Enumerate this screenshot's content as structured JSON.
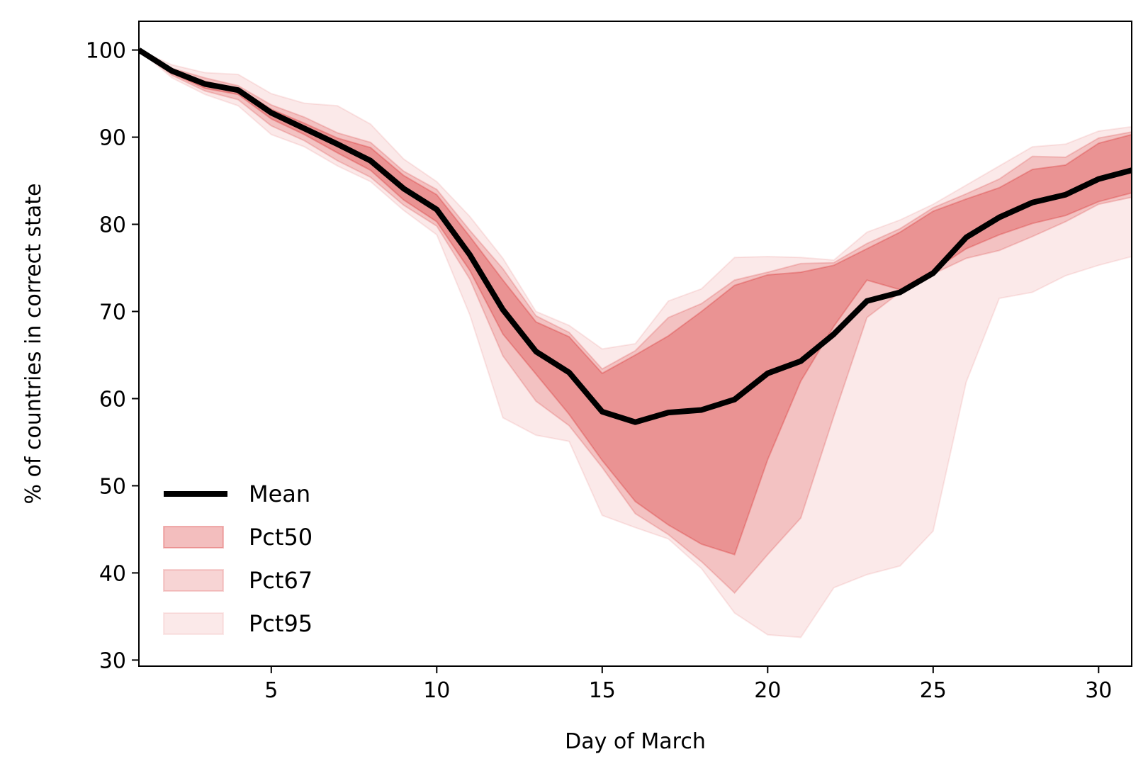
{
  "chart_data": {
    "type": "area",
    "title": "",
    "xlabel": "Day of March",
    "ylabel": "% of countries in correct state",
    "xlim": [
      1,
      31
    ],
    "ylim": [
      29.3,
      103.3
    ],
    "xticks": [
      5,
      10,
      15,
      20,
      25,
      30
    ],
    "yticks": [
      30,
      40,
      50,
      60,
      70,
      80,
      90,
      100
    ],
    "grid": false,
    "legend_position": "lower-left",
    "colors": {
      "mean": "#000000",
      "band": "#d62728",
      "pct50_opacity": 0.3,
      "pct67_opacity": 0.2,
      "pct95_opacity": 0.1
    },
    "x": [
      1,
      2,
      3,
      4,
      5,
      6,
      7,
      8,
      9,
      10,
      11,
      12,
      13,
      14,
      15,
      16,
      17,
      18,
      19,
      20,
      21,
      22,
      23,
      24,
      25,
      26,
      27,
      28,
      29,
      30,
      31
    ],
    "series": [
      {
        "name": "Mean",
        "kind": "line",
        "values": [
          100,
          97.6,
          96.1,
          95.4,
          92.8,
          91,
          89.2,
          87.3,
          84.1,
          81.7,
          76.5,
          70.2,
          65.4,
          63,
          58.5,
          57.3,
          58.4,
          58.7,
          59.9,
          62.9,
          64.3,
          67.4,
          71.2,
          72.2,
          74.4,
          78.5,
          80.8,
          82.5,
          83.4,
          85.2,
          86.2
        ]
      },
      {
        "name": "Pct50",
        "kind": "band",
        "upper": [
          100,
          97.7,
          96.4,
          95.6,
          93.2,
          91.6,
          89.9,
          88.8,
          85.6,
          83.4,
          78.6,
          73.6,
          68.8,
          67.1,
          62.9,
          65,
          67.2,
          70,
          73,
          74.2,
          74.5,
          75.3,
          77.2,
          79.1,
          81.5,
          82.9,
          84.2,
          86.3,
          86.8,
          89.3,
          90.3
        ],
        "lower": [
          100,
          97.3,
          95.6,
          94.9,
          92.1,
          90.3,
          88.2,
          86.2,
          82.8,
          80.3,
          74.7,
          67.4,
          62.8,
          58.2,
          52.9,
          48.2,
          45.5,
          43.3,
          42.1,
          53,
          62,
          68.3,
          73.6,
          72.5,
          74.7,
          77.2,
          78.8,
          80.1,
          81,
          82.6,
          83.6
        ]
      },
      {
        "name": "Pct67",
        "kind": "band",
        "upper": [
          100,
          97.9,
          96.8,
          95.9,
          93.7,
          92.3,
          90.5,
          89.4,
          86.1,
          84,
          79.3,
          74.9,
          69.5,
          67.6,
          63.4,
          65.5,
          69.3,
          70.9,
          73.6,
          74.5,
          75.5,
          75.6,
          77.8,
          79.5,
          81.9,
          83.5,
          85.2,
          87.8,
          87.7,
          89.9,
          90.6
        ],
        "lower": [
          100,
          97.1,
          95.3,
          94.3,
          91.3,
          89.6,
          87.3,
          85.4,
          82.2,
          79.8,
          73.7,
          64.9,
          59.7,
          56.9,
          52.1,
          46.8,
          44.4,
          41.3,
          37.7,
          42.1,
          46.3,
          58,
          69.3,
          72.2,
          74.3,
          76.1,
          77,
          78.6,
          80.3,
          82.3,
          83.1
        ]
      },
      {
        "name": "Pct95",
        "kind": "band",
        "upper": [
          100,
          98.3,
          97.4,
          97.2,
          95,
          93.9,
          93.6,
          91.5,
          87.5,
          84.9,
          80.9,
          76.1,
          70,
          68.4,
          65.7,
          66.3,
          71.2,
          72.6,
          76.2,
          76.3,
          76.2,
          75.9,
          79.1,
          80.5,
          82.3,
          84.5,
          86.7,
          88.9,
          89.2,
          90.7,
          91.2
        ],
        "lower": [
          100,
          96.8,
          94.9,
          93.6,
          90.3,
          88.9,
          86.7,
          84.9,
          81.6,
          78.8,
          69.6,
          57.8,
          55.8,
          55.1,
          46.6,
          45.2,
          43.9,
          40.5,
          35.4,
          32.9,
          32.6,
          38.3,
          39.8,
          40.8,
          44.8,
          61.9,
          71.5,
          72.2,
          74.1,
          75.3,
          76.3
        ]
      }
    ]
  }
}
